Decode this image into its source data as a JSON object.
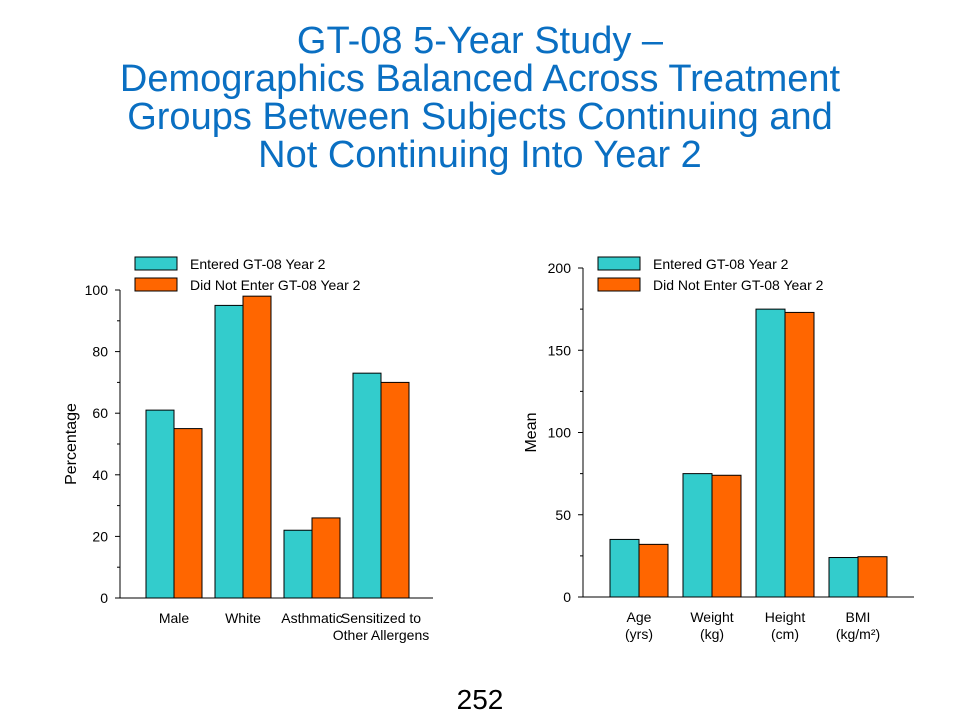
{
  "slide": {
    "title_lines": [
      "GT-08 5-Year Study –",
      "Demographics Balanced Across Treatment",
      "Groups Between Subjects Continuing and",
      "Not Continuing Into Year 2"
    ],
    "page_number": "252"
  },
  "colors": {
    "entered": "#33cccc",
    "not_entered": "#ff6600",
    "title": "#0a6fc2"
  },
  "chart_data": [
    {
      "type": "bar",
      "ylabel": "Percentage",
      "ylim": [
        0,
        100
      ],
      "yticks": [
        0,
        20,
        40,
        60,
        80,
        100
      ],
      "categories": [
        [
          "Male"
        ],
        [
          "White"
        ],
        [
          "Asthmatic"
        ],
        [
          "Sensitized to",
          "Other Allergens"
        ]
      ],
      "series": [
        {
          "name": "Entered GT-08 Year 2",
          "values": [
            61,
            95,
            22,
            73
          ]
        },
        {
          "name": "Did Not Enter GT-08 Year 2",
          "values": [
            55,
            98,
            26,
            70
          ]
        }
      ],
      "legend": "top-left"
    },
    {
      "type": "bar",
      "ylabel": "Mean",
      "ylim": [
        0,
        200
      ],
      "yticks": [
        0,
        50,
        100,
        150,
        200
      ],
      "categories": [
        [
          "Age",
          "(yrs)"
        ],
        [
          "Weight",
          "(kg)"
        ],
        [
          "Height",
          "(cm)"
        ],
        [
          "BMI",
          "(kg/m²)"
        ]
      ],
      "series": [
        {
          "name": "Entered GT-08 Year 2",
          "values": [
            35,
            75,
            175,
            24
          ]
        },
        {
          "name": "Did Not Enter GT-08 Year 2",
          "values": [
            32,
            74,
            173,
            24.5
          ]
        }
      ],
      "legend": "top-left"
    }
  ]
}
